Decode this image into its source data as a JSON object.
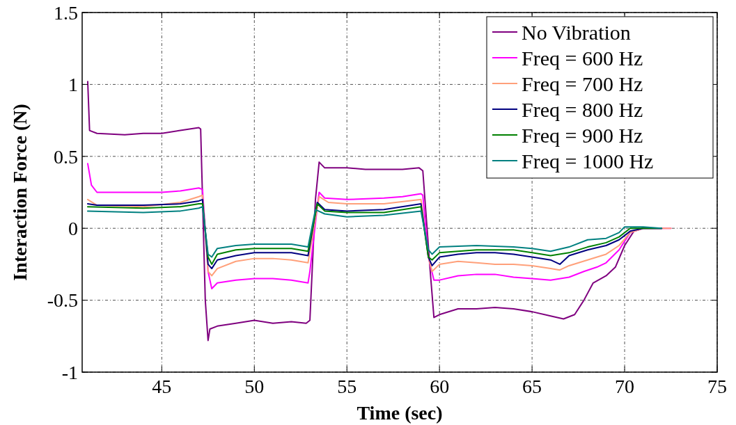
{
  "chart_data": {
    "type": "line",
    "xlabel": "Time (sec)",
    "ylabel": "Interaction Force (N)",
    "xlim": [
      40.7,
      75
    ],
    "xticks": [
      45,
      50,
      55,
      60,
      65,
      70,
      75
    ],
    "ylim": [
      -1,
      1.5
    ],
    "yticks": [
      -1,
      -0.5,
      0,
      0.5,
      1,
      1.5
    ],
    "grid": true,
    "legend": "top right",
    "series": [
      {
        "name": "No Vibration",
        "color": "#7f007f",
        "x": [
          41,
          41.1,
          41.5,
          43,
          44,
          45,
          46,
          47,
          47.1,
          47.35,
          47.5,
          47.6,
          48,
          49,
          50,
          51,
          52,
          52.8,
          53,
          53.3,
          53.5,
          53.8,
          55,
          56,
          57,
          58,
          58.9,
          59.1,
          59.5,
          59.7,
          60,
          61,
          62,
          63,
          64,
          65,
          66,
          66.7,
          67.3,
          67.8,
          68.3,
          69,
          69.5,
          70,
          70.5,
          71,
          72
        ],
        "values": [
          1.02,
          0.68,
          0.66,
          0.65,
          0.66,
          0.66,
          0.68,
          0.7,
          0.69,
          -0.5,
          -0.78,
          -0.7,
          -0.68,
          -0.66,
          -0.64,
          -0.66,
          -0.65,
          -0.66,
          -0.64,
          0.2,
          0.46,
          0.42,
          0.42,
          0.41,
          0.41,
          0.41,
          0.42,
          0.4,
          -0.3,
          -0.62,
          -0.6,
          -0.56,
          -0.56,
          -0.55,
          -0.56,
          -0.58,
          -0.61,
          -0.63,
          -0.6,
          -0.5,
          -0.38,
          -0.33,
          -0.27,
          -0.12,
          -0.02,
          0,
          0
        ]
      },
      {
        "name": "Freq = 600 Hz",
        "color": "#ff00ff",
        "x": [
          41,
          41.2,
          41.5,
          43,
          45,
          46,
          47,
          47.2,
          47.5,
          47.7,
          48,
          49,
          50,
          51,
          52,
          52.9,
          53,
          53.4,
          53.5,
          53.8,
          55,
          57,
          58,
          59,
          59.1,
          59.4,
          59.7,
          60,
          61,
          62,
          63,
          64,
          65,
          66,
          67,
          67.8,
          68.5,
          69,
          69.7,
          70.3,
          71,
          72.5
        ],
        "values": [
          0.45,
          0.3,
          0.25,
          0.25,
          0.25,
          0.26,
          0.28,
          0.27,
          -0.3,
          -0.42,
          -0.38,
          -0.36,
          -0.35,
          -0.35,
          -0.36,
          -0.38,
          -0.3,
          0.15,
          0.25,
          0.21,
          0.2,
          0.21,
          0.22,
          0.24,
          0.23,
          -0.2,
          -0.36,
          -0.36,
          -0.33,
          -0.32,
          -0.32,
          -0.34,
          -0.35,
          -0.36,
          -0.34,
          -0.3,
          -0.27,
          -0.24,
          -0.15,
          -0.03,
          0,
          0
        ]
      },
      {
        "name": "Freq = 700 Hz",
        "color": "#ffa07a",
        "x": [
          41,
          41.5,
          44,
          46,
          47,
          47.2,
          47.5,
          47.7,
          48,
          49,
          50,
          51,
          52,
          52.9,
          53.5,
          54,
          55,
          57,
          59,
          59.4,
          59.6,
          60,
          61,
          62,
          63,
          64,
          65,
          66,
          66.5,
          67,
          68,
          69,
          69.7,
          70.3,
          71,
          72.5
        ],
        "values": [
          0.2,
          0.16,
          0.15,
          0.18,
          0.22,
          0.23,
          -0.3,
          -0.33,
          -0.28,
          -0.23,
          -0.21,
          -0.21,
          -0.22,
          -0.24,
          0.22,
          0.18,
          0.17,
          0.17,
          0.2,
          -0.2,
          -0.3,
          -0.25,
          -0.23,
          -0.24,
          -0.25,
          -0.25,
          -0.26,
          -0.28,
          -0.29,
          -0.26,
          -0.22,
          -0.18,
          -0.12,
          -0.03,
          0,
          0
        ]
      },
      {
        "name": "Freq = 800 Hz",
        "color": "#000080",
        "x": [
          41,
          41.5,
          44,
          46,
          47,
          47.2,
          47.5,
          47.7,
          48,
          49,
          50,
          51,
          52,
          52.9,
          53.4,
          53.8,
          55,
          57,
          59,
          59.4,
          59.6,
          60,
          61,
          62,
          63,
          64,
          65,
          66,
          66.5,
          67,
          68,
          69,
          69.7,
          70.3,
          71,
          72
        ],
        "values": [
          0.17,
          0.16,
          0.16,
          0.17,
          0.19,
          0.2,
          -0.25,
          -0.28,
          -0.22,
          -0.19,
          -0.17,
          -0.17,
          -0.17,
          -0.19,
          0.18,
          0.13,
          0.12,
          0.13,
          0.17,
          -0.2,
          -0.26,
          -0.2,
          -0.18,
          -0.17,
          -0.17,
          -0.18,
          -0.2,
          -0.22,
          -0.25,
          -0.19,
          -0.15,
          -0.12,
          -0.08,
          -0.02,
          0,
          0
        ]
      },
      {
        "name": "Freq = 900 Hz",
        "color": "#008000",
        "x": [
          41,
          44,
          46,
          47,
          47.2,
          47.5,
          47.7,
          48,
          49,
          50,
          52,
          52.9,
          53.4,
          53.8,
          55,
          57,
          59,
          59.4,
          59.6,
          60,
          62,
          64,
          65,
          66,
          67,
          68,
          69,
          69.7,
          70.3,
          71,
          72
        ],
        "values": [
          0.15,
          0.14,
          0.15,
          0.17,
          0.17,
          -0.2,
          -0.25,
          -0.18,
          -0.15,
          -0.14,
          -0.14,
          -0.16,
          0.17,
          0.12,
          0.11,
          0.11,
          0.15,
          -0.2,
          -0.22,
          -0.17,
          -0.15,
          -0.15,
          -0.17,
          -0.19,
          -0.17,
          -0.13,
          -0.1,
          -0.06,
          0,
          0,
          0
        ]
      },
      {
        "name": "Freq = 1000 Hz",
        "color": "#008080",
        "x": [
          41,
          44,
          46,
          47,
          47.2,
          47.5,
          47.7,
          48,
          49,
          50,
          52,
          52.9,
          53.3,
          53.8,
          55,
          57,
          59,
          59.4,
          59.6,
          60,
          62,
          64,
          65,
          66,
          67,
          68,
          69,
          69.7,
          70,
          71,
          72
        ],
        "values": [
          0.12,
          0.11,
          0.12,
          0.14,
          0.15,
          -0.18,
          -0.2,
          -0.14,
          -0.12,
          -0.11,
          -0.11,
          -0.13,
          0.13,
          0.1,
          0.08,
          0.09,
          0.12,
          -0.15,
          -0.18,
          -0.13,
          -0.12,
          -0.13,
          -0.14,
          -0.16,
          -0.13,
          -0.08,
          -0.07,
          -0.03,
          0.01,
          0.01,
          0
        ]
      }
    ]
  }
}
